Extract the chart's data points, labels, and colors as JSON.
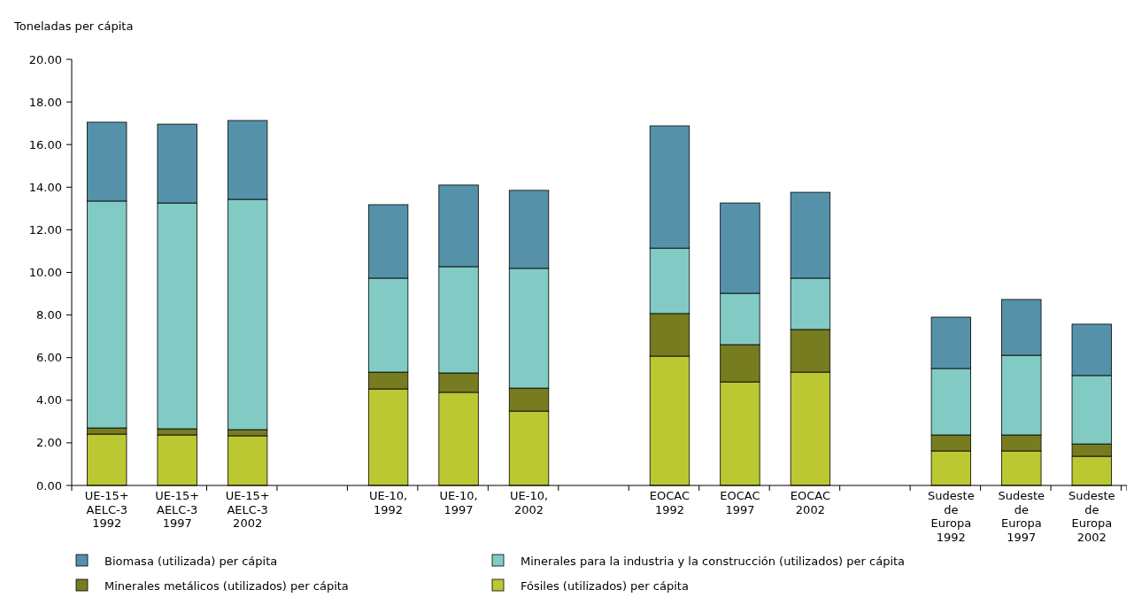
{
  "chart_data": {
    "type": "bar",
    "stacked": true,
    "ylabel": "Toneladas per cápita",
    "categories": [
      "UE-15+\nAELC-3\n1992",
      "UE-15+\nAELC-3\n1997",
      "UE-15+\nAELC-3\n2002",
      null,
      "UE-10,\n1992",
      "UE-10,\n1997",
      "UE-10,\n2002",
      null,
      "EOCAC\n1992",
      "EOCAC\n1997",
      "EOCAC\n2002",
      null,
      "Sudeste\nde\nEuropa\n1992",
      "Sudeste\nde\nEuropa\n1997",
      "Sudeste\nde\nEuropa\n2002"
    ],
    "series": [
      {
        "name": "Fósiles (utilizados) per cápita",
        "color": "#bcc832",
        "values": [
          2.41,
          2.37,
          2.33,
          null,
          4.53,
          4.37,
          3.49,
          null,
          6.07,
          4.86,
          5.32,
          null,
          1.62,
          1.62,
          1.37
        ]
      },
      {
        "name": "Minerales metálicos (utilizados) per cápita",
        "color": "#777c20",
        "values": [
          0.29,
          0.29,
          0.29,
          null,
          0.79,
          0.91,
          1.08,
          null,
          2.0,
          1.75,
          2.0,
          null,
          0.75,
          0.75,
          0.58
        ]
      },
      {
        "name": "Minerales para la industria y la construcción (utilizados) per cápita",
        "color": "#82cbc4",
        "values": [
          10.65,
          10.6,
          10.81,
          null,
          4.41,
          4.99,
          5.62,
          null,
          3.07,
          2.41,
          2.41,
          null,
          3.12,
          3.74,
          3.21
        ]
      },
      {
        "name": "Biomasa (utilizada) per cápita",
        "color": "#5592aa",
        "values": [
          3.7,
          3.7,
          3.7,
          null,
          3.45,
          3.83,
          3.66,
          null,
          5.74,
          4.24,
          4.03,
          null,
          2.41,
          2.62,
          2.41
        ]
      }
    ],
    "ylim": [
      0,
      20
    ],
    "yticks": [
      {
        "value": 0,
        "label": "0.00"
      },
      {
        "value": 2,
        "label": "2.00"
      },
      {
        "value": 4,
        "label": "4.00"
      },
      {
        "value": 6,
        "label": "6.00"
      },
      {
        "value": 8,
        "label": "8.00"
      },
      {
        "value": 10,
        "label": "10.00"
      },
      {
        "value": 12,
        "label": "12.00"
      },
      {
        "value": 14,
        "label": "14.00"
      },
      {
        "value": 16,
        "label": "16.00"
      },
      {
        "value": 18,
        "label": "18.00"
      },
      {
        "value": 20,
        "label": "20.00"
      }
    ],
    "grid": false,
    "legend": "bottom"
  }
}
